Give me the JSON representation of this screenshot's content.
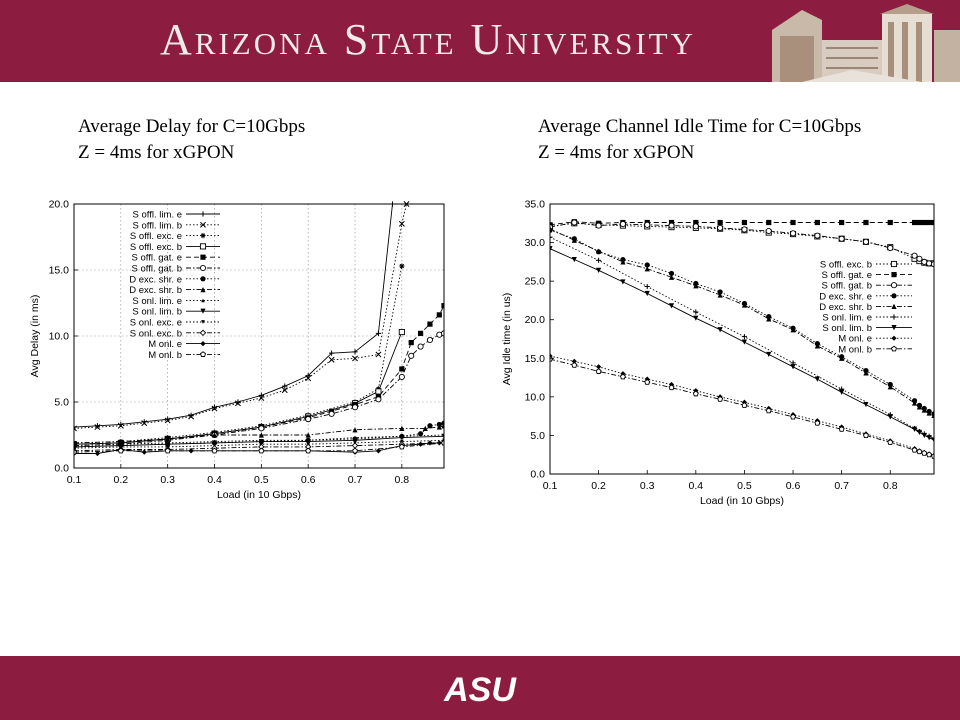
{
  "header": {
    "title": "Arizona State University"
  },
  "captions": {
    "left_line1": "Average Delay for C=10Gbps",
    "left_line2": "Z = 4ms for xGPON",
    "right_line1": "Average Channel Idle Time for C=10Gbps",
    "right_line2": "Z = 4ms for xGPON"
  },
  "footer": {
    "logo_text": "ASU"
  },
  "colors": {
    "banner": "#8c1d40",
    "series": "#000000"
  },
  "chart_data": [
    {
      "type": "line",
      "title": "",
      "xlabel": "Load (in 10 Gbps)",
      "ylabel": "Avg Delay (in ms)",
      "xlim": [
        0.1,
        0.89
      ],
      "ylim": [
        0,
        20
      ],
      "grid": true,
      "legend_position": "top-right",
      "xticks": [
        "0.1",
        "0.2",
        "0.3",
        "0.4",
        "0.5",
        "0.6",
        "0.7",
        "0.8"
      ],
      "yticks": [
        "0.0",
        "5.0",
        "10.0",
        "15.0",
        "20.0"
      ],
      "series": [
        {
          "name": "S offl. lim. e",
          "marker": "plus",
          "dash": "solid",
          "x": [
            0.1,
            0.15,
            0.2,
            0.25,
            0.3,
            0.35,
            0.4,
            0.45,
            0.5,
            0.55,
            0.6,
            0.65,
            0.7,
            0.75,
            0.78
          ],
          "y": [
            3.1,
            3.2,
            3.3,
            3.5,
            3.7,
            4.0,
            4.6,
            5.0,
            5.5,
            6.2,
            7.0,
            8.7,
            8.8,
            10.2,
            20
          ]
        },
        {
          "name": "S offl. lim. b",
          "marker": "x",
          "dash": "dot",
          "x": [
            0.1,
            0.15,
            0.2,
            0.25,
            0.3,
            0.35,
            0.4,
            0.45,
            0.5,
            0.55,
            0.6,
            0.65,
            0.7,
            0.75,
            0.8,
            0.81
          ],
          "y": [
            3.0,
            3.1,
            3.2,
            3.4,
            3.6,
            3.9,
            4.5,
            4.9,
            5.3,
            5.9,
            6.8,
            8.2,
            8.3,
            8.6,
            18.5,
            20
          ]
        },
        {
          "name": "S offl. exc. e",
          "marker": "asterisk",
          "dash": "dot",
          "x": [
            0.1,
            0.2,
            0.3,
            0.4,
            0.5,
            0.6,
            0.7,
            0.75,
            0.8
          ],
          "y": [
            1.9,
            2.0,
            2.3,
            2.7,
            3.2,
            4.0,
            5.0,
            6.0,
            15.3
          ]
        },
        {
          "name": "S offl. exc. b",
          "marker": "square-open",
          "dash": "solid",
          "x": [
            0.1,
            0.2,
            0.3,
            0.4,
            0.5,
            0.6,
            0.7,
            0.75,
            0.8
          ],
          "y": [
            1.8,
            1.9,
            2.2,
            2.6,
            3.1,
            3.9,
            4.9,
            5.8,
            10.3
          ]
        },
        {
          "name": "S offl. gat. e",
          "marker": "square",
          "dash": "dash",
          "x": [
            0.1,
            0.2,
            0.3,
            0.4,
            0.5,
            0.6,
            0.65,
            0.7,
            0.75,
            0.8,
            0.82,
            0.84,
            0.86,
            0.88,
            0.89
          ],
          "y": [
            1.8,
            1.9,
            2.2,
            2.6,
            3.1,
            3.8,
            4.3,
            4.8,
            5.4,
            7.5,
            9.5,
            10.2,
            10.9,
            11.6,
            12.3
          ]
        },
        {
          "name": "S offl. gat. b",
          "marker": "circle-open",
          "dash": "dashdot",
          "x": [
            0.1,
            0.2,
            0.3,
            0.4,
            0.5,
            0.6,
            0.65,
            0.7,
            0.75,
            0.8,
            0.82,
            0.84,
            0.86,
            0.88,
            0.89
          ],
          "y": [
            1.7,
            1.8,
            2.1,
            2.5,
            3.0,
            3.7,
            4.1,
            4.6,
            5.2,
            6.9,
            8.5,
            9.2,
            9.7,
            10.1,
            10.2
          ]
        },
        {
          "name": "D exc. shr. e",
          "marker": "circle",
          "dash": "dot",
          "x": [
            0.1,
            0.2,
            0.3,
            0.4,
            0.5,
            0.6,
            0.7,
            0.8,
            0.84,
            0.86,
            0.88,
            0.89
          ],
          "y": [
            1.6,
            1.7,
            1.8,
            1.9,
            2.0,
            2.1,
            2.2,
            2.4,
            2.6,
            3.2,
            3.3,
            3.4
          ]
        },
        {
          "name": "D exc. shr. b",
          "marker": "triangle",
          "dash": "dashdot",
          "x": [
            0.1,
            0.2,
            0.3,
            0.4,
            0.5,
            0.6,
            0.7,
            0.8,
            0.85,
            0.88,
            0.89
          ],
          "y": [
            1.9,
            2.0,
            2.2,
            2.5,
            2.5,
            2.5,
            2.9,
            3.0,
            3.0,
            3.1,
            3.2
          ]
        },
        {
          "name": "S onl. lim. e",
          "marker": "triangle-small",
          "dash": "dot",
          "x": [
            0.1,
            0.2,
            0.3,
            0.4,
            0.5,
            0.6,
            0.7,
            0.8,
            0.89
          ],
          "y": [
            1.7,
            1.8,
            1.9,
            2.0,
            2.1,
            2.1,
            2.3,
            2.4,
            2.5
          ]
        },
        {
          "name": "S onl. lim. b",
          "marker": "triangle-down",
          "dash": "solid",
          "x": [
            0.1,
            0.2,
            0.3,
            0.4,
            0.5,
            0.6,
            0.7,
            0.8,
            0.89
          ],
          "y": [
            1.6,
            1.7,
            1.8,
            1.9,
            2.0,
            2.0,
            2.1,
            2.3,
            2.4
          ]
        },
        {
          "name": "S onl. exc. e",
          "marker": "triangle-down-small",
          "dash": "dot",
          "x": [
            0.1,
            0.2,
            0.3,
            0.4,
            0.5,
            0.6,
            0.7,
            0.8,
            0.89
          ],
          "y": [
            1.5,
            1.6,
            1.6,
            1.7,
            1.8,
            1.8,
            1.9,
            2.0,
            2.1
          ]
        },
        {
          "name": "S onl. exc. b",
          "marker": "diamond-open",
          "dash": "dashdot",
          "x": [
            0.1,
            0.2,
            0.3,
            0.4,
            0.5,
            0.6,
            0.7,
            0.8,
            0.89
          ],
          "y": [
            1.3,
            1.4,
            1.4,
            1.5,
            1.6,
            1.6,
            1.7,
            1.8,
            1.9
          ]
        },
        {
          "name": "M onl. e",
          "marker": "diamond",
          "dash": "solid",
          "x": [
            0.1,
            0.15,
            0.2,
            0.25,
            0.3,
            0.35,
            0.4,
            0.5,
            0.6,
            0.7,
            0.75,
            0.8,
            0.84,
            0.86,
            0.88,
            0.89
          ],
          "y": [
            1.1,
            1.1,
            1.4,
            1.2,
            1.3,
            1.3,
            1.3,
            1.3,
            1.3,
            1.2,
            1.3,
            1.7,
            1.8,
            1.9,
            1.9,
            2.0
          ]
        },
        {
          "name": "M onl. b",
          "marker": "pentagon-open",
          "dash": "dashdot",
          "x": [
            0.1,
            0.2,
            0.3,
            0.4,
            0.5,
            0.6,
            0.7,
            0.8,
            0.89
          ],
          "y": [
            1.2,
            1.3,
            1.3,
            1.3,
            1.3,
            1.3,
            1.3,
            1.6,
            1.9
          ]
        }
      ]
    },
    {
      "type": "line",
      "title": "",
      "xlabel": "Load (in 10 Gbps)",
      "ylabel": "Avg Idle time (in us)",
      "xlim": [
        0.1,
        0.89
      ],
      "ylim": [
        0,
        35
      ],
      "grid": false,
      "legend_position": "center-right",
      "xticks": [
        "0.1",
        "0.2",
        "0.3",
        "0.4",
        "0.5",
        "0.6",
        "0.7",
        "0.8"
      ],
      "yticks": [
        "0.0",
        "5.0",
        "10.0",
        "15.0",
        "20.0",
        "25.0",
        "30.0",
        "35.0"
      ],
      "series": [
        {
          "name": "S offl. exc. b",
          "marker": "square-open",
          "dash": "dot",
          "x": [
            0.1,
            0.15,
            0.2,
            0.25,
            0.3,
            0.35,
            0.4,
            0.45,
            0.5,
            0.55,
            0.6,
            0.65,
            0.7,
            0.75,
            0.8,
            0.85,
            0.86,
            0.87,
            0.88,
            0.89
          ],
          "y": [
            32.1,
            32.5,
            32.3,
            32.2,
            32.1,
            32.0,
            31.9,
            31.8,
            31.6,
            31.3,
            31.1,
            30.8,
            30.5,
            30.1,
            29.4,
            27.9,
            27.6,
            27.4,
            27.3,
            27.3
          ]
        },
        {
          "name": "S offl. gat. e",
          "marker": "square",
          "dash": "dash",
          "x": [
            0.1,
            0.15,
            0.2,
            0.25,
            0.3,
            0.35,
            0.4,
            0.45,
            0.5,
            0.55,
            0.6,
            0.65,
            0.7,
            0.75,
            0.8,
            0.85,
            0.86,
            0.87,
            0.88,
            0.89
          ],
          "y": [
            32.3,
            32.7,
            32.5,
            32.6,
            32.6,
            32.6,
            32.6,
            32.6,
            32.6,
            32.6,
            32.6,
            32.6,
            32.6,
            32.6,
            32.6,
            32.6,
            32.6,
            32.6,
            32.6,
            32.6
          ]
        },
        {
          "name": "S offl. gat. b",
          "marker": "circle-open",
          "dash": "dashdot",
          "x": [
            0.1,
            0.15,
            0.2,
            0.25,
            0.3,
            0.35,
            0.4,
            0.45,
            0.5,
            0.55,
            0.6,
            0.65,
            0.7,
            0.75,
            0.8,
            0.85,
            0.86,
            0.87,
            0.88,
            0.89
          ],
          "y": [
            32.0,
            32.6,
            32.2,
            32.4,
            32.3,
            32.2,
            32.1,
            31.9,
            31.7,
            31.5,
            31.2,
            30.9,
            30.5,
            30.1,
            29.3,
            28.3,
            27.9,
            27.5,
            27.3,
            27.2
          ]
        },
        {
          "name": "D exc. shr. e",
          "marker": "circle",
          "dash": "dot",
          "x": [
            0.1,
            0.15,
            0.2,
            0.25,
            0.3,
            0.35,
            0.4,
            0.45,
            0.5,
            0.55,
            0.6,
            0.65,
            0.7,
            0.75,
            0.8,
            0.85,
            0.86,
            0.87,
            0.88,
            0.89
          ],
          "y": [
            31.6,
            30.5,
            28.8,
            27.8,
            27.1,
            26.0,
            24.7,
            23.6,
            22.1,
            20.4,
            18.9,
            16.9,
            15.2,
            13.4,
            11.6,
            9.5,
            8.9,
            8.5,
            8.1,
            7.8
          ]
        },
        {
          "name": "D exc. shr. b",
          "marker": "triangle",
          "dash": "dashdot",
          "x": [
            0.1,
            0.15,
            0.2,
            0.25,
            0.3,
            0.35,
            0.4,
            0.45,
            0.5,
            0.55,
            0.6,
            0.65,
            0.7,
            0.75,
            0.8,
            0.85,
            0.86,
            0.87,
            0.88,
            0.89
          ],
          "y": [
            31.8,
            30.3,
            28.9,
            27.5,
            26.6,
            25.5,
            24.4,
            23.2,
            21.9,
            20.1,
            18.7,
            16.6,
            15.0,
            13.1,
            11.3,
            9.2,
            8.7,
            8.3,
            7.9,
            7.6
          ]
        },
        {
          "name": "S onl. lim. e",
          "marker": "plus",
          "dash": "dot",
          "x": [
            0.1,
            0.2,
            0.3,
            0.4,
            0.5,
            0.6,
            0.7,
            0.8,
            0.85,
            0.86,
            0.87,
            0.88,
            0.89
          ],
          "y": [
            30.7,
            27.7,
            24.3,
            21.0,
            17.8,
            14.4,
            11.0,
            7.7,
            5.9,
            5.5,
            5.2,
            4.9,
            4.6
          ]
        },
        {
          "name": "S onl. lim. b",
          "marker": "triangle-down",
          "dash": "solid",
          "x": [
            0.1,
            0.15,
            0.2,
            0.25,
            0.3,
            0.35,
            0.4,
            0.45,
            0.5,
            0.55,
            0.6,
            0.65,
            0.7,
            0.75,
            0.8,
            0.85,
            0.86,
            0.87,
            0.88,
            0.89
          ],
          "y": [
            29.2,
            27.8,
            26.4,
            24.9,
            23.4,
            21.8,
            20.2,
            18.7,
            17.1,
            15.5,
            13.9,
            12.3,
            10.6,
            9.0,
            7.4,
            5.8,
            5.4,
            5.0,
            4.7,
            4.4
          ]
        },
        {
          "name": "M onl. e",
          "marker": "diamond",
          "dash": "dot",
          "x": [
            0.1,
            0.15,
            0.2,
            0.25,
            0.3,
            0.35,
            0.4,
            0.45,
            0.5,
            0.55,
            0.6,
            0.65,
            0.7,
            0.75,
            0.8,
            0.85,
            0.86,
            0.87,
            0.88,
            0.89
          ],
          "y": [
            15.3,
            14.6,
            13.9,
            13.0,
            12.3,
            11.6,
            10.8,
            10.0,
            9.3,
            8.5,
            7.7,
            6.9,
            6.1,
            5.2,
            4.3,
            3.3,
            3.0,
            2.8,
            2.6,
            2.4
          ]
        },
        {
          "name": "M onl. b",
          "marker": "pentagon-open",
          "dash": "dashdot",
          "x": [
            0.1,
            0.15,
            0.2,
            0.25,
            0.3,
            0.35,
            0.4,
            0.45,
            0.5,
            0.55,
            0.6,
            0.65,
            0.7,
            0.75,
            0.8,
            0.85,
            0.86,
            0.87,
            0.88,
            0.89
          ],
          "y": [
            14.9,
            14.1,
            13.3,
            12.6,
            11.9,
            11.2,
            10.4,
            9.7,
            8.9,
            8.2,
            7.4,
            6.6,
            5.8,
            5.0,
            4.1,
            3.1,
            2.9,
            2.7,
            2.5,
            2.3
          ]
        }
      ]
    }
  ]
}
